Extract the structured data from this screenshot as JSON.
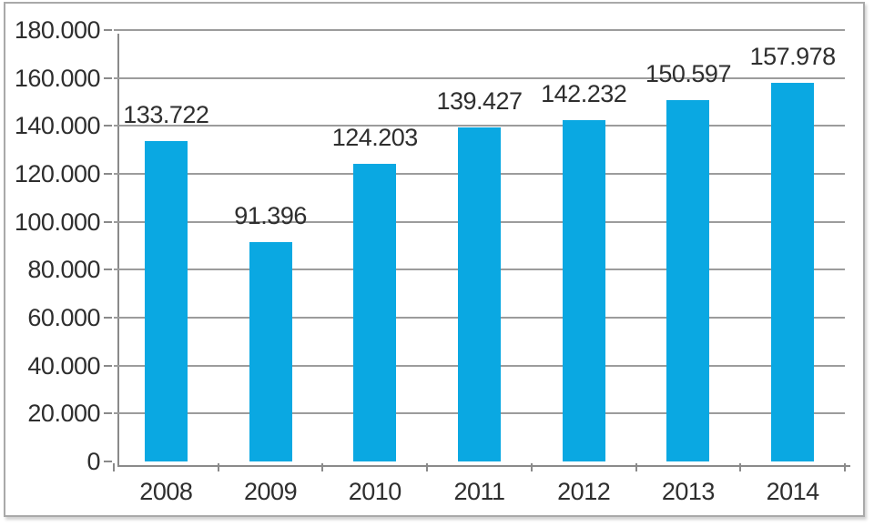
{
  "chart_data": {
    "type": "bar",
    "title": "",
    "xlabel": "",
    "ylabel": "",
    "categories": [
      "2008",
      "2009",
      "2010",
      "2011",
      "2012",
      "2013",
      "2014"
    ],
    "values": [
      133722,
      91396,
      124203,
      139427,
      142232,
      150597,
      157978
    ],
    "value_labels": [
      "133.722",
      "91.396",
      "124.203",
      "139.427",
      "142.232",
      "150.597",
      "157.978"
    ],
    "ylim": [
      0,
      180000
    ],
    "y_tick_step": 20000,
    "y_tick_labels": [
      "0",
      "20.000",
      "40.000",
      "60.000",
      "80.000",
      "100.000",
      "120.000",
      "140.000",
      "160.000",
      "180.000"
    ],
    "grid": true,
    "legend_position": "none",
    "colors": {
      "bar": "#0aa8e2",
      "gridline": "#9c9c9c",
      "axis": "#8a8a8a",
      "text": "#2e2e2e",
      "frame": "#a9a9a9"
    }
  }
}
